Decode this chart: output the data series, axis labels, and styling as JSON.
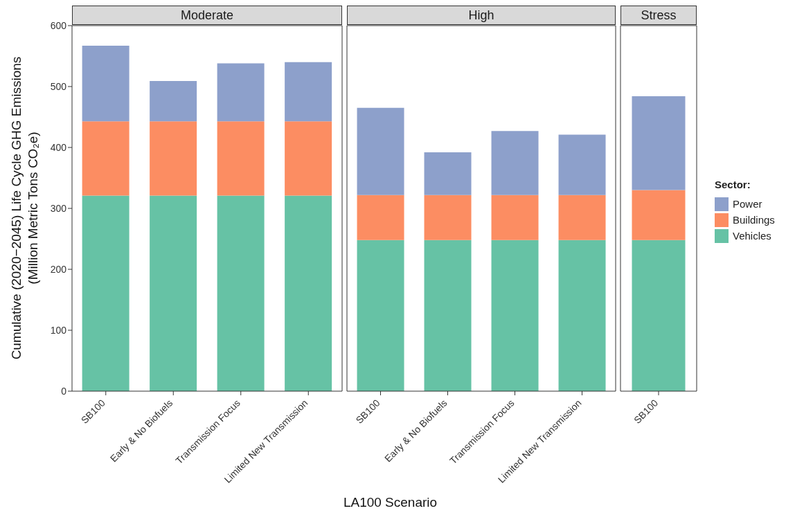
{
  "chart_data": [
    {
      "type": "bar",
      "title": "Moderate",
      "stacked": true,
      "legend": "right",
      "legend_title": "Sector:",
      "ylabel": "Cumulative (2020−2045) Life Cycle GHG Emissions\n(Million Metric Tons CO₂e)",
      "xlabel": "LA100 Scenario",
      "categories": [
        "SB100",
        "Early & No Biofuels",
        "Transmission Focus",
        "Limited New Transmission"
      ],
      "ylim": [
        0,
        600
      ],
      "yticks": [
        0,
        100,
        200,
        300,
        400,
        500,
        600
      ],
      "series": [
        {
          "name": "Vehicles",
          "color": "#66c2a5",
          "values": [
            321,
            321,
            321,
            321
          ]
        },
        {
          "name": "Buildings",
          "color": "#fc8d62",
          "values": [
            122,
            122,
            122,
            122
          ]
        },
        {
          "name": "Power",
          "color": "#8da0cb",
          "values": [
            124,
            66,
            95,
            97
          ]
        }
      ]
    },
    {
      "type": "bar",
      "title": "High",
      "stacked": true,
      "tick_labels": "x",
      "categories": [
        "SB100",
        "Early & No Biofuels",
        "Transmission Focus",
        "Limited New Transmission"
      ],
      "ylim": [
        0,
        600
      ],
      "series": [
        {
          "color": "#66c2a5",
          "values": [
            248,
            248,
            248,
            248
          ]
        },
        {
          "color": "#fc8d62",
          "values": [
            74,
            74,
            74,
            74
          ]
        },
        {
          "color": "#8da0cb",
          "values": [
            143,
            70,
            105,
            99
          ]
        }
      ]
    },
    {
      "type": "bar",
      "title": "Stress",
      "stacked": true,
      "tick_labels": "x",
      "categories": [
        "SB100"
      ],
      "ylim": [
        0,
        600
      ],
      "series": [
        {
          "color": "#66c2a5",
          "values": [
            248
          ]
        },
        {
          "color": "#fc8d62",
          "values": [
            82
          ]
        },
        {
          "color": "#8da0cb",
          "values": [
            154
          ]
        }
      ]
    }
  ]
}
